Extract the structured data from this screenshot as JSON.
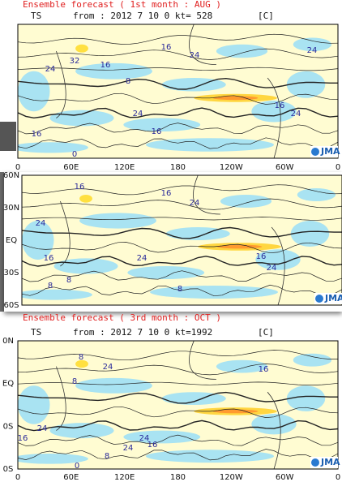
{
  "panels": [
    {
      "title": "Ensemble forecast ( 1st month : AUG )",
      "header": {
        "variable": "TS",
        "from": "from : 2012  7 10  0 kt= 528",
        "unit": "[C]"
      },
      "lon_labels": [
        "0",
        "60E",
        "120E",
        "180",
        "120W",
        "60W",
        "0"
      ],
      "contour_labels": [
        "16",
        "24",
        "32",
        "24",
        "16",
        "8",
        "24",
        "16",
        "16",
        "0",
        "16",
        "24",
        "24"
      ],
      "logo": "JMA"
    },
    {
      "lat_labels": [
        "60N",
        "30N",
        "EQ",
        "30S",
        "60S"
      ],
      "contour_labels": [
        "16",
        "16",
        "24",
        "24",
        "16",
        "8",
        "24",
        "8",
        "16",
        "24",
        "8"
      ],
      "logo": "JMA"
    },
    {
      "title": "Ensemble forecast ( 3rd month : OCT )",
      "header": {
        "variable": "TS",
        "from": "from : 2012  7 10  0 kt=1992",
        "unit": "[C]"
      },
      "lat_labels": [
        "0N",
        "EQ",
        "0S",
        "0S"
      ],
      "lon_labels": [
        "0",
        "60E",
        "120E",
        "180",
        "120W",
        "60W",
        "0"
      ],
      "contour_labels": [
        "8",
        "24",
        "8",
        "16",
        "24",
        "16",
        "24",
        "16",
        "24",
        "8",
        "0"
      ],
      "logo": "JMA"
    }
  ]
}
